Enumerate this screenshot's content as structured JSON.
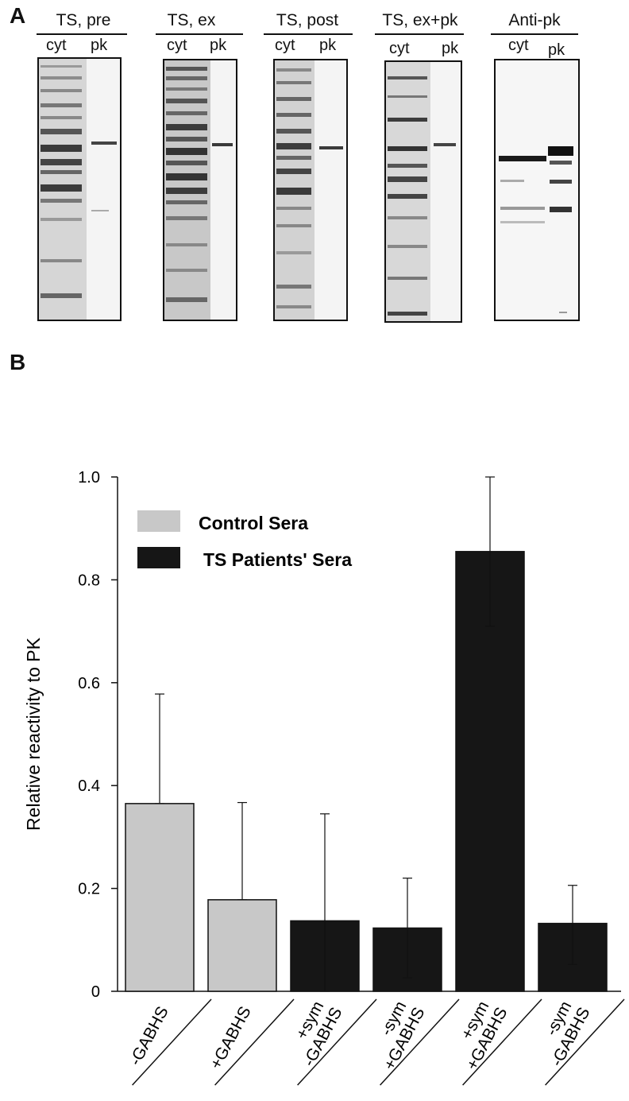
{
  "panel_a": {
    "letter": "A",
    "blots": [
      {
        "title": "TS, pre",
        "lanes": [
          "cyt",
          "pk"
        ]
      },
      {
        "title": "TS, ex",
        "lanes": [
          "cyt",
          "pk"
        ]
      },
      {
        "title": "TS, post",
        "lanes": [
          "cyt",
          "pk"
        ]
      },
      {
        "title": "TS, ex+pk",
        "lanes": [
          "cyt",
          "pk"
        ]
      },
      {
        "title": "Anti-pk",
        "lanes": [
          "cyt",
          "pk"
        ]
      }
    ]
  },
  "panel_b": {
    "letter": "B"
  },
  "chart_data": {
    "type": "bar",
    "ylabel": "Relative reactivity to PK",
    "ylim": [
      0,
      1.0
    ],
    "yticks": [
      "0",
      "0.2",
      "0.4",
      "0.6",
      "0.8",
      "1.0"
    ],
    "ytick_values": [
      0,
      0.2,
      0.4,
      0.6,
      0.8,
      1.0
    ],
    "categories": [
      {
        "line1": "-GABHS",
        "line2": ""
      },
      {
        "line1": "+GABHS",
        "line2": ""
      },
      {
        "line1": "+sym",
        "line2": "-GABHS"
      },
      {
        "line1": "-sym",
        "line2": "+GABHS"
      },
      {
        "line1": "+sym",
        "line2": "+GABHS"
      },
      {
        "line1": "-sym",
        "line2": "-GABHS"
      }
    ],
    "values": [
      0.365,
      0.178,
      0.137,
      0.123,
      0.855,
      0.132
    ],
    "error_upper": [
      0.578,
      0.367,
      0.345,
      0.22,
      1.0,
      0.206
    ],
    "error_lower": [
      0.365,
      0.178,
      0.0,
      0.026,
      0.71,
      0.052
    ],
    "groups": [
      "control",
      "control",
      "ts",
      "ts",
      "ts",
      "ts"
    ],
    "legend": [
      {
        "label": "Control Sera",
        "color": "#c8c8c8"
      },
      {
        "label": "TS Patients' Sera",
        "color": "#161616"
      }
    ],
    "colors": {
      "control": "#c8c8c8",
      "ts": "#161616"
    }
  }
}
